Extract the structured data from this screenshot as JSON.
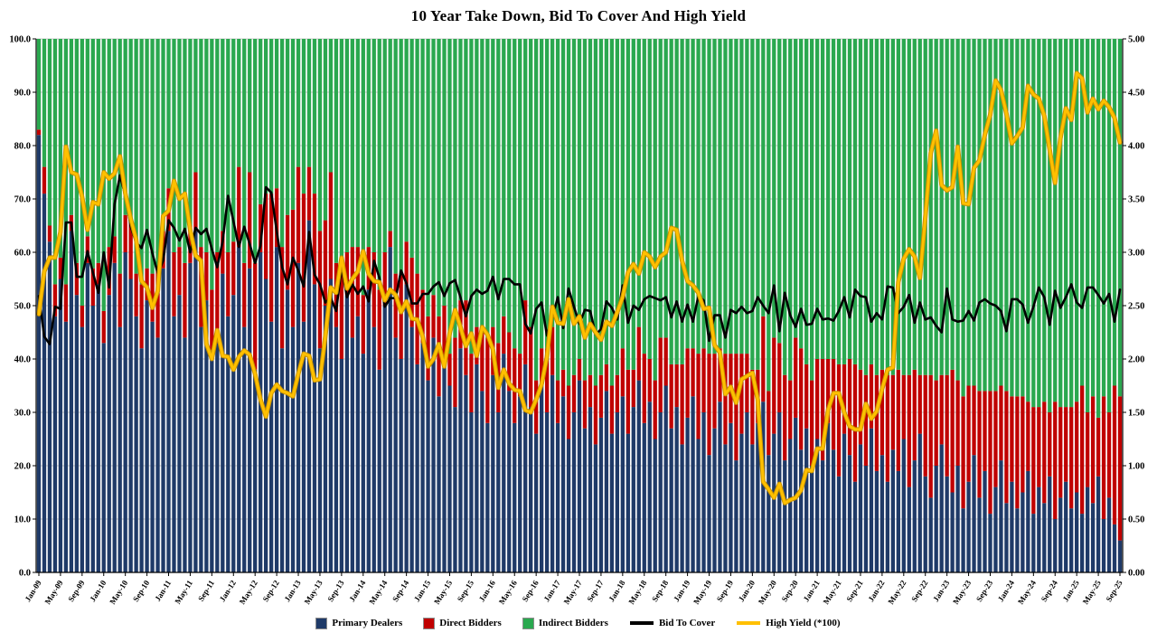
{
  "chart_data": {
    "type": "bar",
    "subtype": "100%-stacked-bars-with-overlay-lines",
    "title": "10 Year Take Down, Bid To Cover And High Yield",
    "x_start": "Jan-09",
    "x_end": "Sep-25",
    "n_points": 201,
    "x_tick_every": 4,
    "x_tick_labels": [
      "Jan-09",
      "May-09",
      "Sep-09",
      "Jan-10",
      "May-10",
      "Sep-10",
      "Jan-11",
      "May-11",
      "Sep-11",
      "Jan-12",
      "May-12",
      "Sep-12",
      "Jan-13",
      "May-13",
      "Sep-13",
      "Jan-14",
      "May-14",
      "Sep-14",
      "Jan-15",
      "May-15",
      "Sep-15",
      "Jan-16",
      "May-16",
      "Sep-16",
      "Jan-17",
      "May-17",
      "Sep-17",
      "Jan-18",
      "May-18",
      "Sep-18",
      "Jan-19",
      "May-19",
      "Sep-19",
      "Jan-20",
      "May-20",
      "Sep-20",
      "Jan-21",
      "May-21",
      "Sep-21",
      "Jan-22",
      "May-22",
      "Sep-22",
      "Jan-23",
      "May-23",
      "Sep-23",
      "Jan-24",
      "May-24",
      "Sep-24",
      "Jan-25",
      "May-25",
      "Sep-25"
    ],
    "axes": {
      "left": {
        "min": 0,
        "max": 100,
        "step": 10,
        "decimals": 1
      },
      "right": {
        "min": 0,
        "max": 5,
        "step": 0.5,
        "decimals": 2
      }
    },
    "grid_color": "#c8c8c8",
    "series": [
      {
        "name": "Primary Dealers",
        "type": "bar-stack",
        "axis": "left",
        "color": "#1F3A68",
        "values": [
          82,
          71,
          62,
          48,
          55,
          47,
          64,
          52,
          46,
          58,
          50,
          54,
          43,
          52,
          58,
          46,
          60,
          55,
          48,
          42,
          51,
          47,
          44,
          57,
          64,
          48,
          52,
          44,
          58,
          64,
          46,
          51,
          40,
          43,
          56,
          48,
          52,
          61,
          46,
          57,
          38,
          60,
          55,
          47,
          61,
          42,
          53,
          46,
          58,
          47,
          66,
          54,
          42,
          50,
          55,
          46,
          40,
          52,
          44,
          48,
          41,
          53,
          46,
          38,
          50,
          61,
          44,
          40,
          54,
          46,
          39,
          43,
          36,
          44,
          33,
          40,
          35,
          31,
          42,
          37,
          30,
          39,
          34,
          28,
          37,
          30,
          41,
          34,
          28,
          33,
          39,
          31,
          26,
          35,
          30,
          37,
          28,
          33,
          25,
          30,
          36,
          27,
          31,
          24,
          29,
          34,
          26,
          30,
          33,
          26,
          31,
          36,
          28,
          32,
          25,
          30,
          35,
          27,
          31,
          24,
          29,
          33,
          25,
          30,
          22,
          27,
          32,
          24,
          28,
          21,
          26,
          30,
          24,
          28,
          32,
          22,
          26,
          30,
          21,
          25,
          29,
          23,
          27,
          20,
          25,
          21,
          28,
          23,
          18,
          26,
          22,
          17,
          24,
          20,
          27,
          19,
          22,
          17,
          23,
          19,
          25,
          16,
          21,
          26,
          18,
          14,
          20,
          24,
          18,
          15,
          20,
          12,
          17,
          22,
          14,
          19,
          11,
          16,
          21,
          13,
          17,
          12,
          15,
          19,
          11,
          16,
          13,
          18,
          10,
          14,
          17,
          12,
          15,
          11,
          16,
          13,
          18,
          10,
          14,
          9,
          6
        ]
      },
      {
        "name": "Direct Bidders",
        "type": "bar-stack",
        "axis": "left",
        "color": "#C00000",
        "values": [
          1,
          5,
          3,
          6,
          4,
          7,
          3,
          6,
          4,
          5,
          7,
          4,
          6,
          9,
          5,
          10,
          7,
          11,
          8,
          12,
          6,
          9,
          13,
          7,
          8,
          12,
          9,
          14,
          7,
          11,
          15,
          9,
          13,
          17,
          8,
          12,
          10,
          15,
          12,
          18,
          20,
          9,
          16,
          24,
          11,
          19,
          14,
          22,
          18,
          24,
          10,
          17,
          22,
          16,
          20,
          12,
          18,
          8,
          17,
          13,
          11,
          8,
          14,
          15,
          10,
          3,
          12,
          16,
          8,
          13,
          17,
          10,
          12,
          8,
          15,
          10,
          6,
          13,
          9,
          14,
          11,
          7,
          12,
          16,
          9,
          13,
          7,
          11,
          14,
          8,
          12,
          15,
          10,
          7,
          12,
          9,
          8,
          5,
          10,
          7,
          4,
          9,
          6,
          11,
          8,
          5,
          9,
          7,
          9,
          12,
          7,
          10,
          13,
          8,
          11,
          14,
          9,
          12,
          8,
          15,
          13,
          9,
          16,
          12,
          19,
          14,
          10,
          17,
          13,
          20,
          15,
          11,
          14,
          10,
          16,
          12,
          18,
          13,
          16,
          11,
          15,
          19,
          12,
          16,
          15,
          19,
          12,
          17,
          21,
          13,
          18,
          22,
          14,
          17,
          12,
          18,
          16,
          20,
          14,
          19,
          12,
          21,
          17,
          11,
          19,
          23,
          16,
          13,
          19,
          23,
          16,
          21,
          18,
          13,
          20,
          15,
          23,
          18,
          14,
          21,
          16,
          21,
          18,
          13,
          20,
          15,
          19,
          12,
          22,
          17,
          14,
          19,
          17,
          24,
          14,
          20,
          11,
          23,
          16,
          26,
          27
        ]
      },
      {
        "name": "Indirect Bidders",
        "type": "bar-stack",
        "axis": "left",
        "color": "#2AA84F",
        "values": "remainder_to_100"
      },
      {
        "name": "Bid To Cover",
        "type": "line",
        "axis": "right",
        "color": "#000000",
        "values": [
          2.59,
          2.21,
          2.14,
          2.49,
          2.47,
          3.28,
          3.28,
          2.77,
          2.77,
          3.01,
          2.81,
          2.62,
          3.0,
          2.67,
          3.45,
          3.72,
          3.53,
          3.24,
          3.09,
          3.04,
          3.21,
          2.99,
          2.8,
          2.92,
          3.3,
          3.23,
          3.11,
          3.22,
          3.0,
          3.23,
          3.17,
          3.22,
          3.03,
          2.86,
          3.1,
          3.53,
          3.29,
          3.05,
          3.24,
          3.08,
          2.9,
          3.06,
          3.61,
          3.56,
          3.2,
          2.86,
          2.7,
          2.95,
          2.83,
          2.68,
          3.19,
          2.79,
          2.7,
          2.53,
          2.57,
          2.45,
          2.86,
          2.58,
          2.7,
          2.61,
          2.68,
          2.54,
          2.92,
          2.76,
          2.49,
          2.57,
          2.57,
          2.83,
          2.71,
          2.52,
          2.52,
          2.61,
          2.61,
          2.68,
          2.72,
          2.59,
          2.71,
          2.74,
          2.58,
          2.4,
          2.59,
          2.65,
          2.61,
          2.64,
          2.77,
          2.56,
          2.75,
          2.75,
          2.7,
          2.7,
          2.33,
          2.24,
          2.47,
          2.53,
          2.22,
          2.39,
          2.58,
          2.29,
          2.66,
          2.49,
          2.33,
          2.46,
          2.45,
          2.23,
          2.28,
          2.54,
          2.48,
          2.37,
          2.69,
          2.34,
          2.5,
          2.46,
          2.56,
          2.59,
          2.57,
          2.55,
          2.58,
          2.39,
          2.54,
          2.35,
          2.51,
          2.35,
          2.59,
          2.55,
          2.17,
          2.41,
          2.41,
          2.2,
          2.46,
          2.43,
          2.49,
          2.43,
          2.45,
          2.58,
          2.5,
          2.43,
          2.69,
          2.26,
          2.62,
          2.41,
          2.3,
          2.47,
          2.32,
          2.33,
          2.47,
          2.37,
          2.38,
          2.36,
          2.45,
          2.58,
          2.39,
          2.65,
          2.59,
          2.58,
          2.35,
          2.43,
          2.37,
          2.68,
          2.67,
          2.43,
          2.49,
          2.6,
          2.34,
          2.53,
          2.37,
          2.39,
          2.31,
          2.25,
          2.66,
          2.37,
          2.35,
          2.36,
          2.45,
          2.36,
          2.53,
          2.56,
          2.52,
          2.5,
          2.45,
          2.26,
          2.56,
          2.56,
          2.51,
          2.34,
          2.49,
          2.67,
          2.58,
          2.32,
          2.64,
          2.48,
          2.58,
          2.7,
          2.53,
          2.48,
          2.67,
          2.67,
          2.6,
          2.52,
          2.61,
          2.35,
          2.65
        ]
      },
      {
        "name": "High Yield (*100)",
        "type": "line",
        "axis": "right",
        "color": "#FFC000",
        "values": [
          2.42,
          2.82,
          2.95,
          2.95,
          3.19,
          3.99,
          3.75,
          3.73,
          3.52,
          3.21,
          3.47,
          3.45,
          3.75,
          3.69,
          3.74,
          3.9,
          3.55,
          3.31,
          3.12,
          2.73,
          2.67,
          2.48,
          2.64,
          3.34,
          3.39,
          3.67,
          3.5,
          3.55,
          3.21,
          2.97,
          2.92,
          2.14,
          2.0,
          2.27,
          2.03,
          2.02,
          1.9,
          2.02,
          2.08,
          2.04,
          1.86,
          1.62,
          1.46,
          1.68,
          1.76,
          1.7,
          1.68,
          1.65,
          1.86,
          2.05,
          2.03,
          1.8,
          1.81,
          2.21,
          2.67,
          2.62,
          2.95,
          2.66,
          2.75,
          2.82,
          3.01,
          2.8,
          2.73,
          2.72,
          2.55,
          2.65,
          2.6,
          2.44,
          2.54,
          2.38,
          2.37,
          2.21,
          1.93,
          2.0,
          2.14,
          1.93,
          2.24,
          2.46,
          2.3,
          2.12,
          2.24,
          2.03,
          2.3,
          2.23,
          2.09,
          1.73,
          1.9,
          1.77,
          1.71,
          1.7,
          1.52,
          1.5,
          1.62,
          1.76,
          2.02,
          2.49,
          2.34,
          2.33,
          2.56,
          2.33,
          2.4,
          2.2,
          2.33,
          2.25,
          2.18,
          2.35,
          2.31,
          2.44,
          2.58,
          2.81,
          2.89,
          2.8,
          3.0,
          2.96,
          2.86,
          2.96,
          3.0,
          3.23,
          3.21,
          2.92,
          2.73,
          2.69,
          2.62,
          2.47,
          2.48,
          2.13,
          2.06,
          1.67,
          1.74,
          1.59,
          1.81,
          1.84,
          1.87,
          1.62,
          0.85,
          0.78,
          0.7,
          0.83,
          0.65,
          0.68,
          0.7,
          0.77,
          0.96,
          0.95,
          1.16,
          1.16,
          1.52,
          1.68,
          1.68,
          1.5,
          1.37,
          1.34,
          1.34,
          1.58,
          1.44,
          1.51,
          1.72,
          1.9,
          1.92,
          2.72,
          2.94,
          3.03,
          2.96,
          2.76,
          3.33,
          3.93,
          4.14,
          3.63,
          3.58,
          3.61,
          3.99,
          3.46,
          3.45,
          3.79,
          3.86,
          4.1,
          4.29,
          4.61,
          4.52,
          4.3,
          4.02,
          4.09,
          4.17,
          4.56,
          4.48,
          4.44,
          4.28,
          3.96,
          3.65,
          4.07,
          4.35,
          4.24,
          4.68,
          4.63,
          4.31,
          4.44,
          4.34,
          4.42,
          4.36,
          4.26,
          4.03
        ]
      }
    ],
    "legend": [
      {
        "label": "Primary Dealers",
        "color": "#1F3A68",
        "swatch": "square"
      },
      {
        "label": "Direct Bidders",
        "color": "#C00000",
        "swatch": "square"
      },
      {
        "label": "Indirect Bidders",
        "color": "#2AA84F",
        "swatch": "square"
      },
      {
        "label": "Bid To Cover",
        "color": "#000000",
        "swatch": "line"
      },
      {
        "label": "High Yield (*100)",
        "color": "#FFC000",
        "swatch": "line"
      }
    ]
  }
}
